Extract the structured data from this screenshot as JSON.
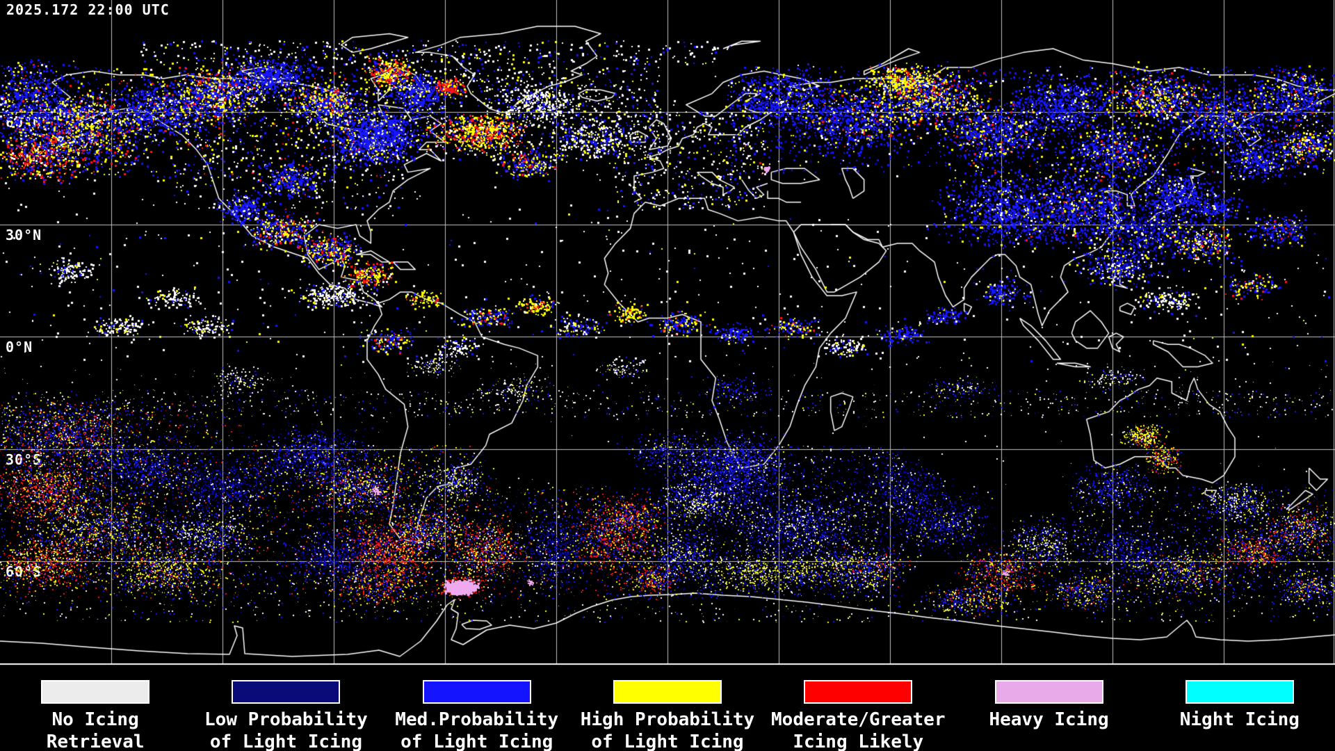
{
  "header": {
    "timestamp": "2025.172 22:00 UTC"
  },
  "map": {
    "background": "#000000",
    "grid_color": "#c3c3c3",
    "coast_color": "#ffffff",
    "border_color": "#ffffff",
    "lon_gridline_spacing_deg": 30,
    "lat_gridline_spacing_deg": 30,
    "latitude_labels": [
      {
        "text": "60°N",
        "lat": 60
      },
      {
        "text": "30°N",
        "lat": 30
      },
      {
        "text": "0°N",
        "lat": 0
      },
      {
        "text": "30°S",
        "lat": -30
      },
      {
        "text": "60°S",
        "lat": -60
      }
    ]
  },
  "legend": {
    "items": [
      {
        "label_line1": "No Icing",
        "label_line2": "Retrieval",
        "color": "#ececec"
      },
      {
        "label_line1": "Low Probability",
        "label_line2": "of Light Icing",
        "color": "#0a0a78"
      },
      {
        "label_line1": "Med.Probability",
        "label_line2": "of Light Icing",
        "color": "#1414ff"
      },
      {
        "label_line1": "High Probability",
        "label_line2": "of Light Icing",
        "color": "#ffff00"
      },
      {
        "label_line1": "Moderate/Greater",
        "label_line2": "Icing Likely",
        "color": "#ff0000"
      },
      {
        "label_line1": "Heavy Icing",
        "label_line2": "",
        "color": "#e9aae9"
      },
      {
        "label_line1": "Night Icing",
        "label_line2": "",
        "color": "#00ffff"
      }
    ]
  },
  "palette": {
    "no_icing_retrieval": "#ffffff",
    "low_prob_light_icing": "#000096",
    "med_prob_light_icing": "#1616ff",
    "high_prob_light_icing": "#ffff00",
    "moderate_greater_icing": "#ff1414",
    "heavy_icing": "#efaaef",
    "night_icing": "#00ffff"
  }
}
